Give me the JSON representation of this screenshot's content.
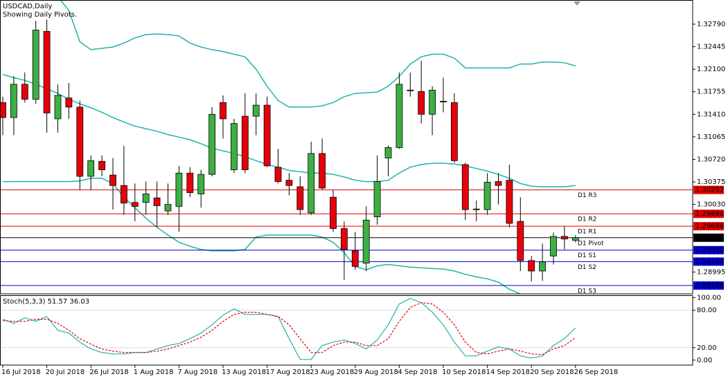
{
  "chart_data": [
    {
      "type": "candlestick",
      "title": "USDCAD,Daily",
      "subtitle": "Showing Daily Pivots.",
      "up_color": "#3cb043",
      "down_color": "#e8000b",
      "open": [
        1.3159,
        1.3136,
        1.3187,
        1.3164,
        1.3268,
        1.3134,
        1.3166,
        1.3152,
        1.3046,
        1.3069,
        1.3048,
        1.3032,
        1.3006,
        1.3006,
        1.3013,
        1.2993,
        1.3,
        1.3051,
        1.3019,
        1.3049,
        1.3159,
        1.3056,
        1.3138,
        1.3138,
        1.3155,
        1.306,
        1.304,
        1.303,
        1.299,
        1.3081,
        1.3014,
        1.2966,
        1.2932,
        1.2913,
        1.2984,
        1.3074,
        1.309,
        1.3178,
        1.3176,
        1.3141,
        1.3161,
        1.3159,
        1.3064,
        1.2995,
        1.2995,
        1.3038,
        1.304,
        1.2977,
        1.2917,
        1.2901,
        1.2924,
        1.2954,
        1.2948
      ],
      "high": [
        1.3168,
        1.3199,
        1.3205,
        1.3284,
        1.3286,
        1.3187,
        1.3189,
        1.3162,
        1.3078,
        1.3078,
        1.3074,
        1.3093,
        1.3035,
        1.3038,
        1.3038,
        1.3035,
        1.3062,
        1.306,
        1.3056,
        1.3152,
        1.317,
        1.3134,
        1.3173,
        1.3173,
        1.3168,
        1.3088,
        1.3051,
        1.3046,
        1.3099,
        1.3104,
        1.3025,
        1.2977,
        1.2961,
        1.3,
        1.3078,
        1.3093,
        1.3205,
        1.3205,
        1.3223,
        1.3184,
        1.3197,
        1.3173,
        1.3067,
        1.3009,
        1.3051,
        1.3051,
        1.3064,
        1.3014,
        1.2924,
        1.2943,
        1.296,
        1.297,
        1.2956
      ],
      "low": [
        1.3109,
        1.3109,
        1.3159,
        1.3157,
        1.3113,
        1.3113,
        1.3134,
        1.3025,
        1.3025,
        1.3046,
        1.2995,
        1.2987,
        1.2977,
        1.2987,
        1.2968,
        1.2987,
        1.2961,
        1.3014,
        1.2998,
        1.3046,
        1.3104,
        1.3051,
        1.3051,
        1.3109,
        1.306,
        1.3035,
        1.3017,
        1.2987,
        1.2987,
        1.3025,
        1.2961,
        1.2887,
        1.2903,
        1.2901,
        1.2972,
        1.3046,
        1.3088,
        1.3168,
        1.3127,
        1.3109,
        1.3144,
        1.3067,
        1.2979,
        1.2977,
        1.2987,
        1.3003,
        1.2968,
        1.2901,
        1.2885,
        1.2886,
        1.2911,
        1.2934,
        1.2945
      ],
      "close": [
        1.3136,
        1.3187,
        1.3164,
        1.327,
        1.3143,
        1.317,
        1.3152,
        1.3046,
        1.307,
        1.3056,
        1.3032,
        1.3005,
        1.3,
        1.3019,
        1.3001,
        1.3003,
        1.3051,
        1.3021,
        1.3049,
        1.3141,
        1.3134,
        1.3127,
        1.3056,
        1.3155,
        1.3062,
        1.3038,
        1.3032,
        1.2995,
        1.3081,
        1.3028,
        1.2966,
        1.2934,
        1.2908,
        1.2979,
        1.3038,
        1.309,
        1.3187,
        1.3177,
        1.3141,
        1.3178,
        1.316,
        1.307,
        1.2995,
        1.2996,
        1.3037,
        1.3032,
        1.2974,
        1.2917,
        1.2901,
        1.2915,
        1.2954,
        1.295,
        1.2952
      ],
      "bands": {
        "color": "#20b2aa",
        "upper": [
          1.3422,
          1.3411,
          1.3396,
          1.3374,
          1.3348,
          1.3321,
          1.33,
          1.3252,
          1.324,
          1.3242,
          1.3244,
          1.325,
          1.3258,
          1.3263,
          1.3264,
          1.3263,
          1.3261,
          1.325,
          1.3244,
          1.324,
          1.3237,
          1.3233,
          1.3229,
          1.321,
          1.3184,
          1.3162,
          1.3152,
          1.3152,
          1.3152,
          1.3154,
          1.3159,
          1.3168,
          1.3173,
          1.3174,
          1.3175,
          1.3184,
          1.3199,
          1.3218,
          1.3229,
          1.3233,
          1.3233,
          1.3227,
          1.3212,
          1.3212,
          1.3212,
          1.3212,
          1.3212,
          1.3218,
          1.3218,
          1.3221,
          1.3221,
          1.322,
          1.3215
        ],
        "middle": [
          1.3202,
          1.3197,
          1.3193,
          1.3187,
          1.318,
          1.3173,
          1.3164,
          1.3157,
          1.3151,
          1.3144,
          1.3136,
          1.3129,
          1.3123,
          1.3119,
          1.3115,
          1.311,
          1.3106,
          1.3102,
          1.3096,
          1.3089,
          1.3085,
          1.3081,
          1.3076,
          1.307,
          1.3064,
          1.306,
          1.3055,
          1.3053,
          1.3051,
          1.3051,
          1.3049,
          1.3045,
          1.304,
          1.3038,
          1.3038,
          1.304,
          1.3051,
          1.306,
          1.3064,
          1.3066,
          1.3066,
          1.3065,
          1.3062,
          1.3058,
          1.3054,
          1.3049,
          1.3043,
          1.3035,
          1.3031,
          1.303,
          1.303,
          1.303,
          1.3032
        ],
        "lower": [
          1.3038,
          1.3038,
          1.3038,
          1.3038,
          1.3038,
          1.3038,
          1.3038,
          1.3039,
          1.3043,
          1.3043,
          1.3035,
          1.3014,
          1.2998,
          1.2982,
          1.2968,
          1.2956,
          1.2945,
          1.2939,
          1.2934,
          1.2932,
          1.2932,
          1.2932,
          1.2934,
          1.2953,
          1.2956,
          1.2956,
          1.2956,
          1.2956,
          1.2956,
          1.2953,
          1.2945,
          1.2929,
          1.2908,
          1.2903,
          1.2909,
          1.2911,
          1.2909,
          1.2907,
          1.2906,
          1.2905,
          1.2904,
          1.2901,
          1.2896,
          1.2892,
          1.2889,
          1.2884,
          1.2873,
          1.2866,
          1.2855,
          1.2847,
          1.2841,
          1.2837,
          1.2834
        ]
      },
      "ylim": [
        1.2866,
        1.3316
      ],
      "yticks": [
        {
          "value": 1.3279,
          "label": "1.32790"
        },
        {
          "value": 1.32445,
          "label": "1.32445"
        },
        {
          "value": 1.321,
          "label": "1.32100"
        },
        {
          "value": 1.31755,
          "label": "1.31755"
        },
        {
          "value": 1.3141,
          "label": "1.31410"
        },
        {
          "value": 1.31065,
          "label": "1.31065"
        },
        {
          "value": 1.3072,
          "label": "1.30720"
        },
        {
          "value": 1.30375,
          "label": "1.30375"
        },
        {
          "value": 1.3003,
          "label": "1.30030"
        },
        {
          "value": 1.28995,
          "label": "1.28995"
        }
      ],
      "pivots": [
        {
          "name": "D1 R3",
          "value": 1.30252,
          "label": "1.30252",
          "color": "#e00000"
        },
        {
          "name": "D1 R2",
          "value": 1.29886,
          "label": "1.29886",
          "color": "#e00000"
        },
        {
          "name": "D1 R1",
          "value": 1.29696,
          "label": "1.29696",
          "color": "#e00000"
        },
        {
          "name": "D1 Pivot",
          "value": 1.2952,
          "label": "1.29520",
          "color": "#000000"
        },
        {
          "name": "D1 S1",
          "value": 1.2933,
          "label": "1.29330",
          "color": "#0000cd"
        },
        {
          "name": "D1 S2",
          "value": 1.29154,
          "label": "1.29154",
          "color": "#0000cd"
        },
        {
          "name": "D1 S3",
          "value": 1.28788,
          "label": "1.28788",
          "color": "#0000cd"
        }
      ]
    },
    {
      "type": "line",
      "title": "Stoch(5,3,3) 51.57 36.03",
      "categories": [
        "16 Jul 2018",
        null,
        null,
        null,
        "20 Jul 2018",
        null,
        null,
        null,
        "26 Jul 2018",
        null,
        null,
        null,
        "1 Aug 2018",
        null,
        null,
        null,
        "7 Aug 2018",
        null,
        null,
        null,
        "13 Aug 2018",
        null,
        null,
        null,
        "17 Aug 2018",
        null,
        null,
        null,
        "23 Aug 2018",
        null,
        null,
        null,
        "29 Aug 2018",
        null,
        null,
        null,
        "4 Sep 2018",
        null,
        null,
        null,
        "10 Sep 2018",
        null,
        null,
        null,
        "14 Sep 2018",
        null,
        null,
        null,
        "20 Sep 2018",
        null,
        null,
        null,
        "26 Sep 2018"
      ],
      "series": [
        {
          "color": "#20b2aa",
          "values": [
            65.6,
            58.9,
            67.8,
            62.2,
            70,
            47.8,
            43.3,
            28.9,
            17.8,
            12.2,
            10,
            10,
            12.2,
            12.2,
            17.8,
            23.3,
            26.7,
            34.4,
            43.3,
            56.7,
            72.2,
            82.2,
            73.3,
            73.3,
            73.3,
            70,
            34.4,
            1.1,
            1.1,
            23.3,
            28.9,
            32.2,
            26.7,
            17.8,
            32.2,
            56.7,
            90,
            98.9,
            92.2,
            76.7,
            56.7,
            28.9,
            6.7,
            6.7,
            14.4,
            21.1,
            17.8,
            6.7,
            3.3,
            6.7,
            23.3,
            34.4,
            51.57
          ]
        },
        {
          "color": "#e00000",
          "dashed": true,
          "values": [
            63.3,
            62.2,
            62.2,
            65.6,
            65.6,
            58.9,
            47.8,
            34.4,
            25.6,
            17.8,
            14.4,
            12.2,
            12.2,
            12.2,
            14.4,
            17.8,
            23.3,
            28.9,
            36.7,
            47.8,
            62.2,
            73.3,
            76.7,
            76.7,
            73.3,
            70,
            56.7,
            34.4,
            12.2,
            12.2,
            23.3,
            28.9,
            28.9,
            23.3,
            23.3,
            34.4,
            62.2,
            84.4,
            92.2,
            90,
            76.7,
            56.7,
            28.9,
            12.2,
            10,
            14.4,
            17.8,
            14.4,
            10,
            8.9,
            17.8,
            23.3,
            36.03
          ]
        }
      ],
      "ylim": [
        -8,
        104
      ],
      "yticks": [
        {
          "value": 100,
          "label": "100.00"
        },
        {
          "value": 80,
          "label": "80.00"
        },
        {
          "value": 20,
          "label": "20.00"
        },
        {
          "value": 0,
          "label": "0.00"
        }
      ],
      "level_lines": [
        20,
        80
      ]
    }
  ]
}
